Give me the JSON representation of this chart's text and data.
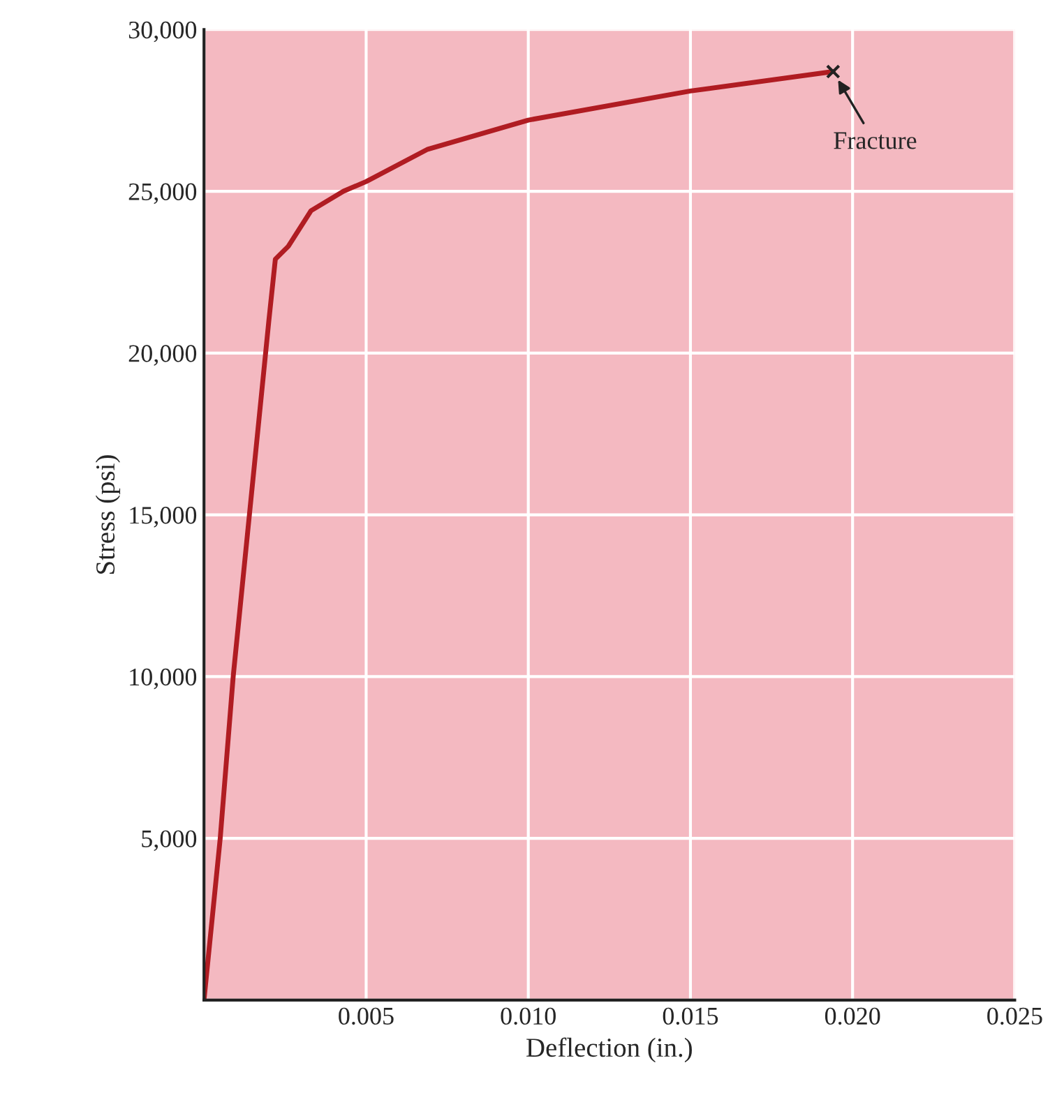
{
  "chart_data": {
    "type": "line",
    "xlabel": "Deflection (in.)",
    "ylabel": "Stress (psi)",
    "x": [
      0,
      0.0005,
      0.0009,
      0.0014,
      0.0019,
      0.002,
      0.0022,
      0.0026,
      0.0033,
      0.0043,
      0.005,
      0.0069,
      0.01,
      0.015,
      0.0194
    ],
    "series": [
      {
        "color": "#b01c22",
        "values": [
          0,
          5000,
          10000,
          15000,
          20000,
          21000,
          22900,
          23300,
          24400,
          25000,
          25300,
          26300,
          27200,
          28100,
          28700
        ]
      }
    ],
    "xlim": [
      0,
      0.025
    ],
    "ylim": [
      0,
      30000
    ],
    "xticks": [
      {
        "value": 0,
        "label": null
      },
      {
        "value": 0.005,
        "label": "0.005"
      },
      {
        "value": 0.01,
        "label": "0.010"
      },
      {
        "value": 0.015,
        "label": "0.015"
      },
      {
        "value": 0.02,
        "label": "0.020"
      },
      {
        "value": 0.025,
        "label": "0.025"
      }
    ],
    "yticks": [
      {
        "value": 0,
        "label": null
      },
      {
        "value": 5000,
        "label": "5,000"
      },
      {
        "value": 10000,
        "label": "10,000"
      },
      {
        "value": 15000,
        "label": "15,000"
      },
      {
        "value": 20000,
        "label": "20,000"
      },
      {
        "value": 25000,
        "label": "25,000"
      },
      {
        "value": 30000,
        "label": "30,000"
      }
    ],
    "grid": true,
    "marker": "none",
    "line_style": "solid",
    "annotations": [
      {
        "text": "Fracture",
        "x": 0.0194,
        "y": 28700
      }
    ]
  }
}
